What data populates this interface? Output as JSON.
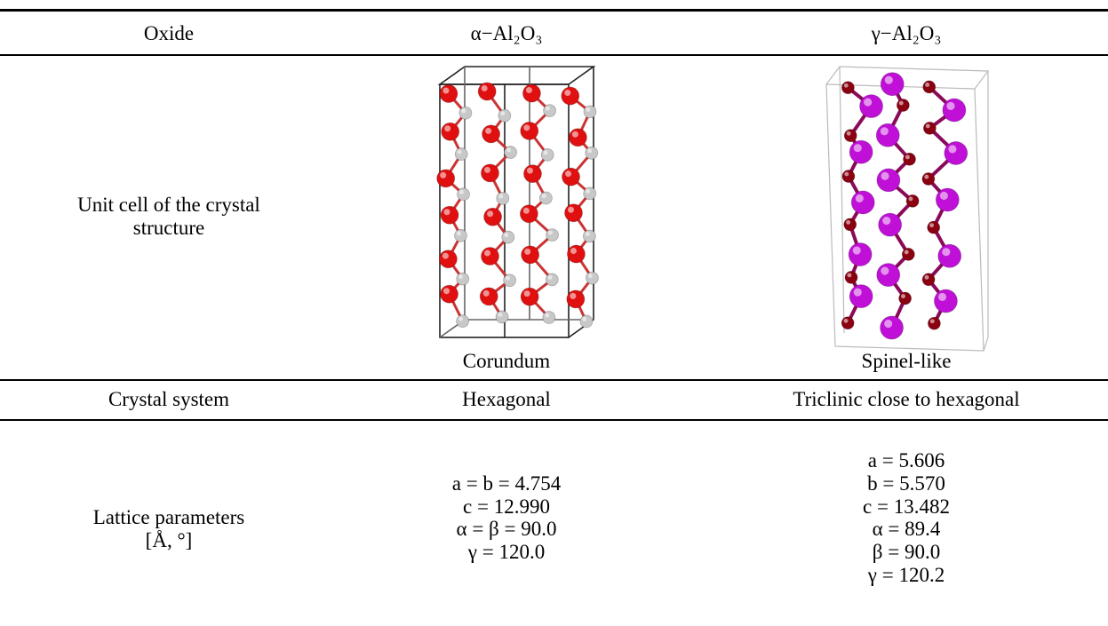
{
  "table": {
    "header": [
      "Oxide",
      "α−Al₂O₃",
      "γ−Al₂O₃"
    ],
    "rows": [
      {
        "label": [
          "Unit cell of the crystal",
          "structure"
        ],
        "cells": [
          "Corundum",
          "Spinel-like"
        ]
      },
      {
        "label": [
          "Crystal system"
        ],
        "cells": [
          "Hexagonal",
          "Triclinic close to hexagonal"
        ]
      },
      {
        "label": [
          "Lattice parameters",
          "[Å, °]"
        ],
        "cells": [
          [
            "a = b = 4.754",
            "c = 12.990",
            "α = β = 90.0",
            "γ = 120.0"
          ],
          [
            "a = 5.606",
            "b = 5.570",
            "c = 13.482",
            "α = 89.4",
            "β = 90.0",
            "γ = 120.2"
          ]
        ]
      }
    ]
  }
}
